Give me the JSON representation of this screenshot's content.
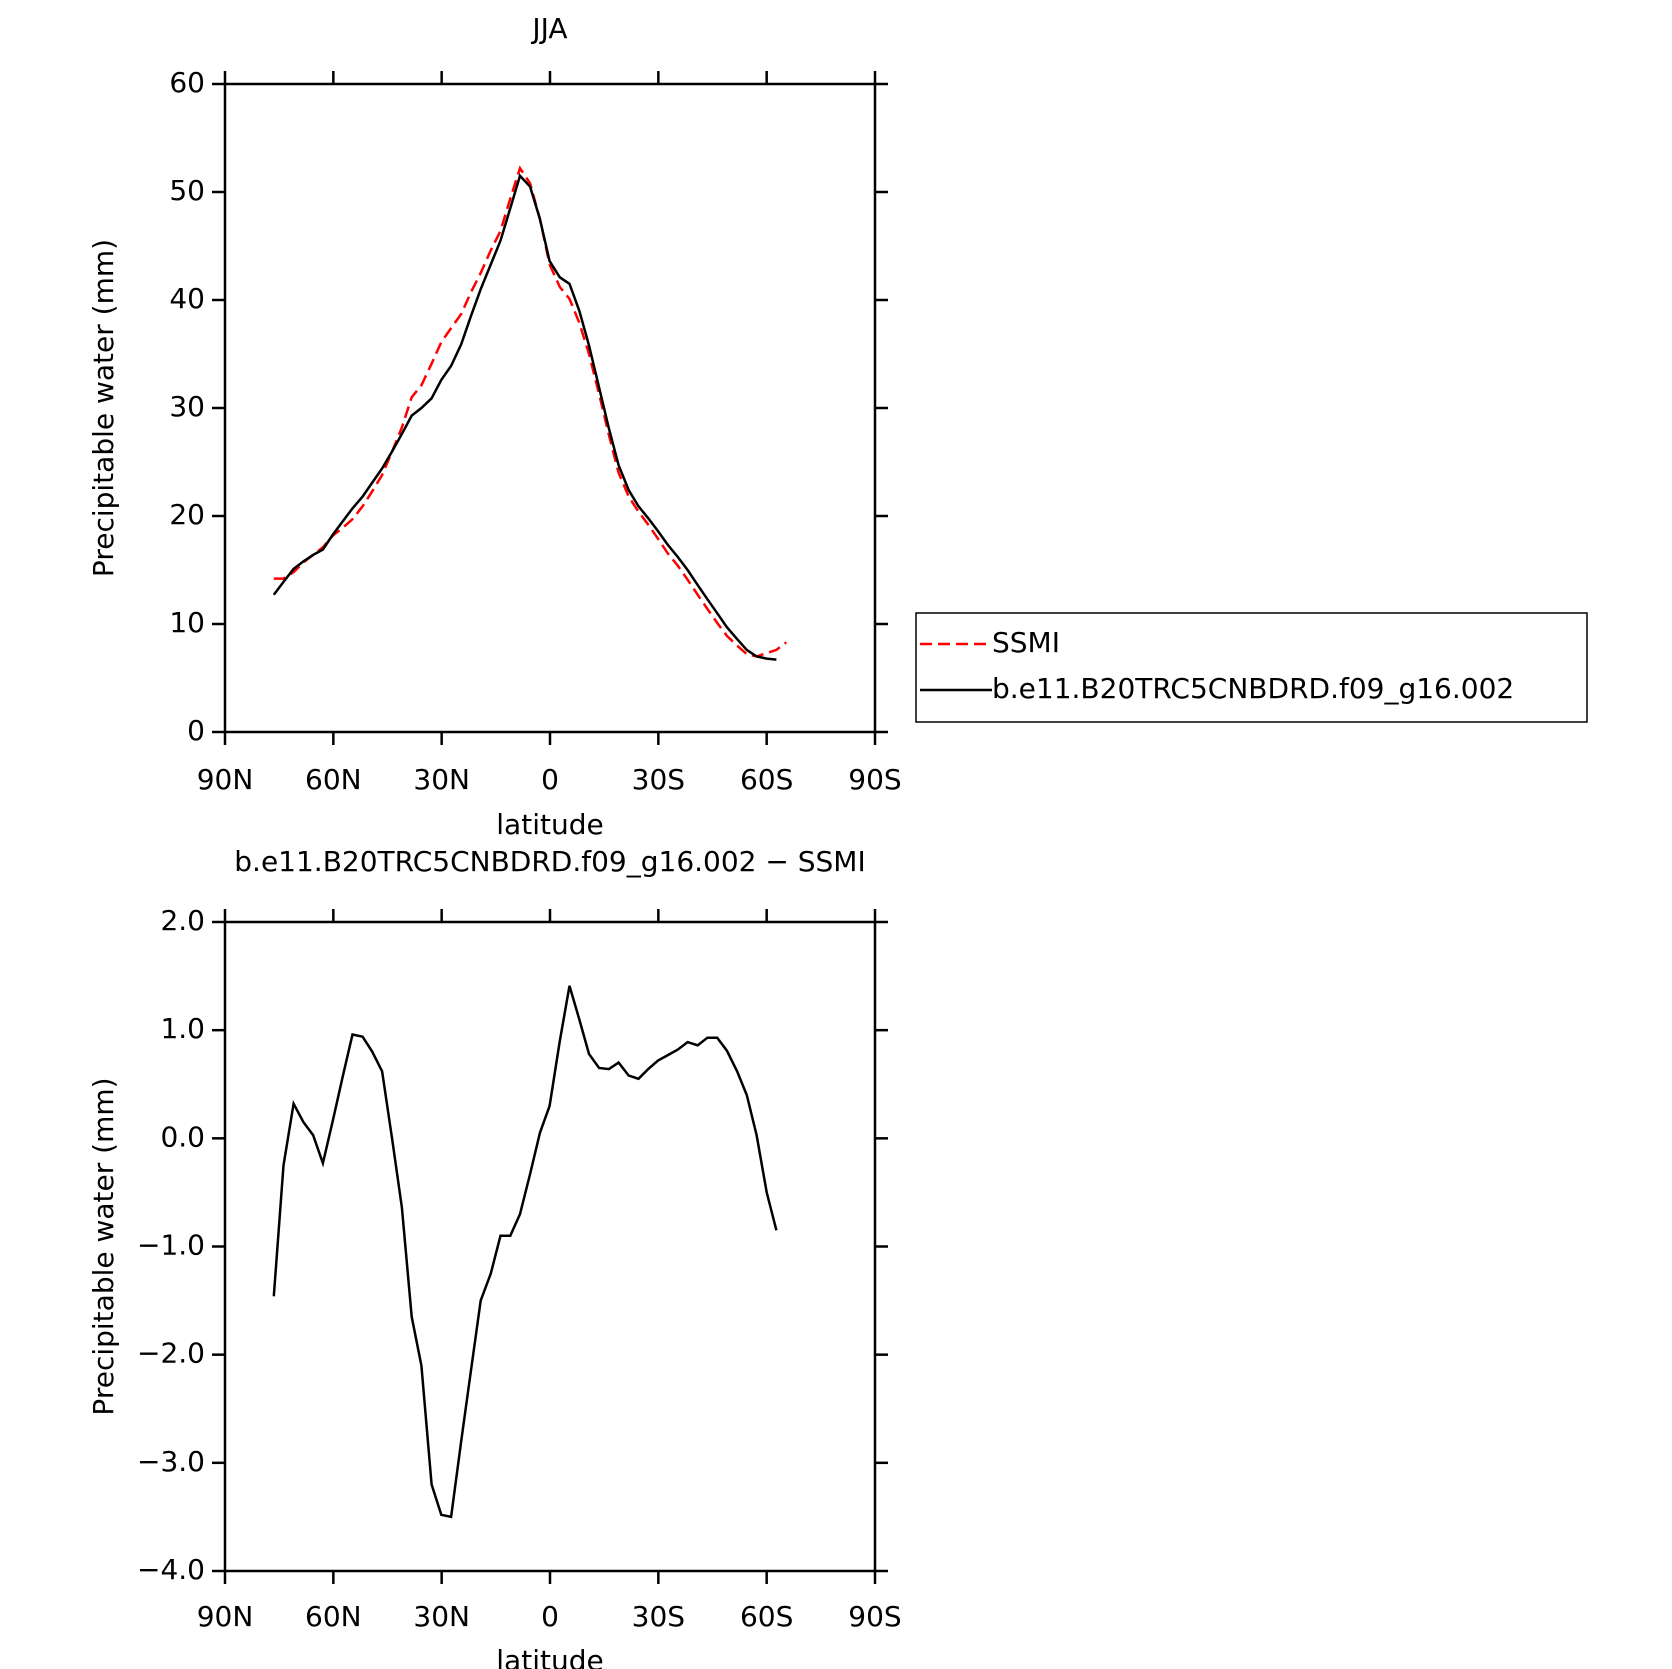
{
  "chart_data": [
    {
      "type": "line",
      "title": "JJA",
      "xlabel": "latitude",
      "ylabel": "Precipitable water (mm)",
      "x": [
        76.5,
        73.8,
        71.0,
        68.3,
        65.6,
        62.9,
        60.1,
        57.4,
        54.7,
        51.9,
        49.2,
        46.5,
        43.7,
        41.0,
        38.3,
        35.6,
        32.8,
        30.1,
        27.4,
        24.6,
        21.9,
        19.2,
        16.4,
        13.7,
        11.0,
        8.3,
        5.5,
        2.8,
        0.1,
        -2.7,
        -5.4,
        -8.1,
        -10.8,
        -13.6,
        -16.3,
        -19.0,
        -21.8,
        -24.5,
        -27.2,
        -29.9,
        -32.7,
        -35.4,
        -38.1,
        -40.9,
        -43.6,
        -46.3,
        -49.0,
        -51.8,
        -54.5,
        -57.2,
        -60.0,
        -62.7,
        -65.4
      ],
      "series": [
        {
          "name": "SSMI",
          "color": "#ff0000",
          "dashed": true,
          "values": [
            14.2,
            14.2,
            14.8,
            15.7,
            16.4,
            17.1,
            18.2,
            18.9,
            19.7,
            20.9,
            22.3,
            23.8,
            26.0,
            28.2,
            31.0,
            32.1,
            34.1,
            36.1,
            37.4,
            38.7,
            40.7,
            42.5,
            44.6,
            46.4,
            49.4,
            52.2,
            50.8,
            47.5,
            43.3,
            41.2,
            40.1,
            37.9,
            35.0,
            31.3,
            27.5,
            24.0,
            21.8,
            20.4,
            19.2,
            17.9,
            16.5,
            15.4,
            14.1,
            12.7,
            11.4,
            10.1,
            8.9,
            8.0,
            7.2,
            7.0,
            7.3,
            7.6,
            8.3
          ]
        },
        {
          "name": "b.e11.B20TRC5CNBDRD.f09_g16.002",
          "color": "#000000",
          "dashed": false,
          "values": [
            12.7,
            13.9,
            15.1,
            15.8,
            16.4,
            16.9,
            18.3,
            19.5,
            20.7,
            21.8,
            23.1,
            24.4,
            26.0,
            27.6,
            29.3,
            30.0,
            30.9,
            32.6,
            33.9,
            35.9,
            38.5,
            41.0,
            43.3,
            45.5,
            48.5,
            51.5,
            50.5,
            47.5,
            43.6,
            42.1,
            41.5,
            39.0,
            35.8,
            31.9,
            28.1,
            24.7,
            22.4,
            20.9,
            19.8,
            18.6,
            17.3,
            16.2,
            15.0,
            13.6,
            12.3,
            11.0,
            9.7,
            8.6,
            7.6,
            7.0,
            6.8,
            6.7,
            null
          ]
        }
      ],
      "xlim": [
        90,
        -90
      ],
      "xticks": [
        {
          "value": 90,
          "label": "90N"
        },
        {
          "value": 60,
          "label": "60N"
        },
        {
          "value": 30,
          "label": "30N"
        },
        0,
        {
          "value": -30,
          "label": "30S"
        },
        {
          "value": -60,
          "label": "60S"
        },
        {
          "value": -90,
          "label": "90S"
        }
      ],
      "ylim": [
        0,
        60
      ],
      "yticks": [
        0,
        10,
        20,
        30,
        40,
        50,
        60
      ],
      "legend": "outside-right"
    },
    {
      "type": "line",
      "title": "b.e11.B20TRC5CNBDRD.f09_g16.002 − SSMI",
      "xlabel": "latitude",
      "ylabel": "Precipitable water (mm)",
      "x": [
        76.5,
        73.8,
        71.0,
        68.3,
        65.6,
        62.9,
        60.1,
        57.4,
        54.7,
        51.9,
        49.2,
        46.5,
        43.7,
        41.0,
        38.3,
        35.6,
        32.8,
        30.1,
        27.4,
        24.6,
        21.9,
        19.2,
        16.4,
        13.7,
        11.0,
        8.3,
        5.5,
        2.8,
        0.1,
        -2.7,
        -5.4,
        -8.1,
        -10.8,
        -13.6,
        -16.3,
        -19.0,
        -21.8,
        -24.5,
        -27.2,
        -29.9,
        -32.7,
        -35.4,
        -38.1,
        -40.9,
        -43.6,
        -46.3,
        -49.0,
        -51.8,
        -54.5,
        -57.2,
        -60.0,
        -62.7
      ],
      "values": [
        -1.46,
        -0.25,
        0.32,
        0.15,
        0.03,
        -0.23,
        0.17,
        0.57,
        0.96,
        0.94,
        0.8,
        0.62,
        -0.01,
        -0.64,
        -1.65,
        -2.1,
        -3.2,
        -3.48,
        -3.5,
        -2.8,
        -2.15,
        -1.5,
        -1.25,
        -0.9,
        -0.9,
        -0.7,
        -0.33,
        0.05,
        0.3,
        0.9,
        1.41,
        1.1,
        0.78,
        0.65,
        0.64,
        0.7,
        0.58,
        0.55,
        0.64,
        0.72,
        0.77,
        0.82,
        0.89,
        0.86,
        0.93,
        0.93,
        0.81,
        0.62,
        0.4,
        0.03,
        -0.5,
        -0.85
      ],
      "color": "#000000",
      "xlim": [
        90,
        -90
      ],
      "xticks": [
        {
          "value": 90,
          "label": "90N"
        },
        {
          "value": 60,
          "label": "60N"
        },
        {
          "value": 30,
          "label": "30N"
        },
        0,
        {
          "value": -30,
          "label": "30S"
        },
        {
          "value": -60,
          "label": "60S"
        },
        {
          "value": -90,
          "label": "90S"
        }
      ],
      "ylim": [
        -4,
        2
      ],
      "yticks": [
        {
          "value": -4,
          "label": "−4.0"
        },
        {
          "value": -3,
          "label": "−3.0"
        },
        {
          "value": -2,
          "label": "−2.0"
        },
        {
          "value": -1,
          "label": "−1.0"
        },
        {
          "value": 0,
          "label": "0.0"
        },
        {
          "value": 1,
          "label": "1.0"
        },
        {
          "value": 2,
          "label": "2.0"
        }
      ]
    }
  ]
}
